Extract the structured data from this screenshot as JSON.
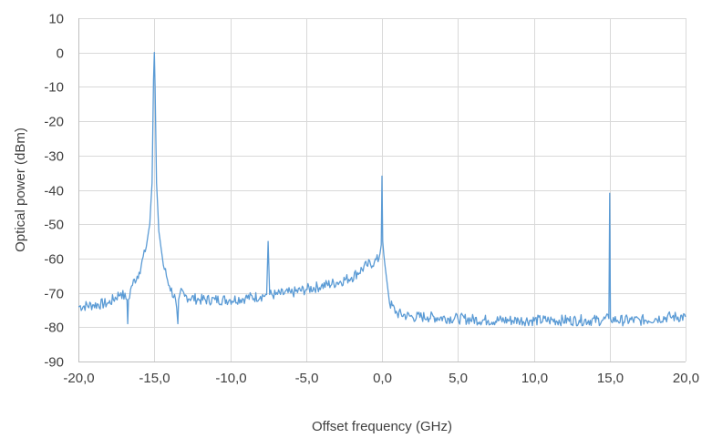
{
  "chart_data": {
    "type": "line",
    "xlabel": "Offset frequency (GHz)",
    "ylabel": "Optical power (dBm)",
    "xlim": [
      -20,
      20
    ],
    "ylim": [
      -90,
      10
    ],
    "x_ticks": [
      -20,
      -15,
      -10,
      -5,
      0,
      5,
      10,
      15,
      20
    ],
    "x_tick_labels": [
      "-20,0",
      "-15,0",
      "-10,0",
      "-5,0",
      "0,0",
      "5,0",
      "10,0",
      "15,0",
      "20,0"
    ],
    "y_ticks": [
      10,
      0,
      -10,
      -20,
      -30,
      -40,
      -50,
      -60,
      -70,
      -80,
      -90
    ],
    "y_tick_labels": [
      "10",
      "0",
      "-10",
      "-20",
      "-30",
      "-40",
      "-50",
      "-60",
      "-70",
      "-80",
      "-90"
    ],
    "grid": true,
    "legend": "none",
    "series_color": "#5b9bd5",
    "series": [
      {
        "x": [
          -20,
          -19,
          -18,
          -17.2,
          -16.8,
          -16.75,
          -16.7,
          -16.5,
          -16,
          -15.6,
          -15.3,
          -15.15,
          -15.05,
          -15.0,
          -14.95,
          -14.85,
          -14.7,
          -14.4,
          -14,
          -13.6,
          -13.45,
          -13.4,
          -13.3,
          -13,
          -12,
          -11,
          -10,
          -9,
          -8,
          -7.6,
          -7.5,
          -7.4,
          -7,
          -6,
          -5,
          -4,
          -3,
          -2,
          -1,
          -0.5,
          -0.2,
          -0.05,
          0.0,
          0.05,
          0.2,
          0.5,
          1,
          2,
          3,
          5,
          7,
          9,
          11,
          13,
          14.5,
          14.95,
          15.0,
          15.05,
          15.5,
          17,
          18,
          19,
          20
        ],
        "y": [
          -74,
          -73.5,
          -73,
          -70,
          -72,
          -79,
          -72,
          -68,
          -64,
          -58,
          -50,
          -38,
          -8,
          0,
          -10,
          -38,
          -52,
          -62,
          -68,
          -72,
          -79,
          -72,
          -70,
          -71,
          -72,
          -72,
          -72,
          -71.5,
          -71,
          -70.5,
          -55,
          -70.5,
          -70.5,
          -70,
          -69,
          -68,
          -67,
          -65.5,
          -62,
          -61,
          -60,
          -56,
          -36,
          -55,
          -62,
          -73,
          -76,
          -77,
          -77,
          -77.5,
          -78,
          -78,
          -78,
          -78,
          -78,
          -77.5,
          -41,
          -77.5,
          -78,
          -78,
          -77.5,
          -77,
          -77
        ]
      }
    ]
  }
}
